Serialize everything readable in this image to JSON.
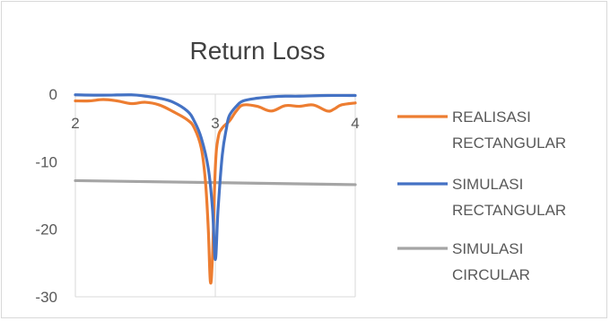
{
  "chart_data": {
    "type": "line",
    "title": "Return Loss",
    "xlabel": "",
    "ylabel": "",
    "xlim": [
      2,
      4
    ],
    "ylim": [
      -30,
      0
    ],
    "x_ticks": [
      2,
      3,
      4
    ],
    "y_ticks": [
      0,
      -10,
      -20,
      -30
    ],
    "grid": false,
    "legend_position": "right",
    "series": [
      {
        "name": "REALISASI RECTANGULAR",
        "color": "#ED7D31",
        "points": [
          [
            2.0,
            -1.0
          ],
          [
            2.1,
            -1.0
          ],
          [
            2.2,
            -0.8
          ],
          [
            2.3,
            -1.0
          ],
          [
            2.4,
            -1.4
          ],
          [
            2.5,
            -1.2
          ],
          [
            2.6,
            -1.6
          ],
          [
            2.7,
            -2.6
          ],
          [
            2.8,
            -3.8
          ],
          [
            2.85,
            -5.0
          ],
          [
            2.9,
            -8.0
          ],
          [
            2.93,
            -13.0
          ],
          [
            2.95,
            -20.0
          ],
          [
            2.965,
            -27.8
          ],
          [
            2.98,
            -24.0
          ],
          [
            3.0,
            -11.0
          ],
          [
            3.02,
            -6.5
          ],
          [
            3.05,
            -5.0
          ],
          [
            3.1,
            -4.0
          ],
          [
            3.15,
            -2.5
          ],
          [
            3.2,
            -1.6
          ],
          [
            3.3,
            -1.8
          ],
          [
            3.4,
            -2.5
          ],
          [
            3.5,
            -1.7
          ],
          [
            3.6,
            -1.8
          ],
          [
            3.7,
            -1.6
          ],
          [
            3.8,
            -2.5
          ],
          [
            3.85,
            -2.2
          ],
          [
            3.9,
            -1.6
          ],
          [
            4.0,
            -1.3
          ]
        ]
      },
      {
        "name": "SIMULASI RECTANGULAR",
        "color": "#4472C4",
        "points": [
          [
            2.0,
            -0.1
          ],
          [
            2.2,
            -0.15
          ],
          [
            2.4,
            -0.1
          ],
          [
            2.5,
            -0.3
          ],
          [
            2.6,
            -0.6
          ],
          [
            2.7,
            -1.2
          ],
          [
            2.8,
            -2.5
          ],
          [
            2.85,
            -4.0
          ],
          [
            2.9,
            -6.5
          ],
          [
            2.95,
            -11.0
          ],
          [
            2.98,
            -17.0
          ],
          [
            3.0,
            -24.5
          ],
          [
            3.02,
            -17.0
          ],
          [
            3.05,
            -9.0
          ],
          [
            3.08,
            -5.0
          ],
          [
            3.1,
            -3.2
          ],
          [
            3.15,
            -1.8
          ],
          [
            3.2,
            -1.0
          ],
          [
            3.3,
            -0.6
          ],
          [
            3.4,
            -0.4
          ],
          [
            3.5,
            -0.3
          ],
          [
            3.6,
            -0.3
          ],
          [
            3.8,
            -0.2
          ],
          [
            4.0,
            -0.2
          ]
        ]
      },
      {
        "name": "SIMULASI CIRCULAR",
        "color": "#A5A5A5",
        "points": [
          [
            2.0,
            -12.8
          ],
          [
            4.0,
            -13.4
          ]
        ]
      }
    ]
  }
}
